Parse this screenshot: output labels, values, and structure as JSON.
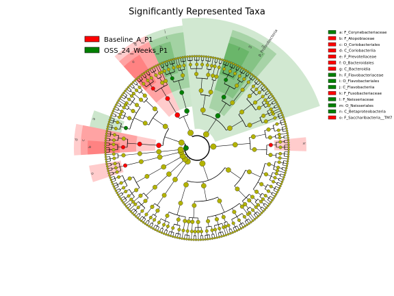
{
  "chart_data": {
    "type": "cladogram",
    "title": "Significantly Represented Taxa",
    "groups": [
      {
        "name": "Baseline_A_P1",
        "color": "#ff0000"
      },
      {
        "name": "OSS_24_Weeks_P1",
        "color": "#008000"
      }
    ],
    "neutral_color": "#b3b300",
    "biomarkers": [
      {
        "letter": "a",
        "label": "a: F_Corynebacteriaceae",
        "group": "OSS_24_Weeks_P1"
      },
      {
        "letter": "b",
        "label": "b: F_Atopobiaceae",
        "group": "Baseline_A_P1"
      },
      {
        "letter": "c",
        "label": "c: O_Coriobacteriales",
        "group": "Baseline_A_P1"
      },
      {
        "letter": "d",
        "label": "d: C_Coriobacteriia",
        "group": "Baseline_A_P1"
      },
      {
        "letter": "e",
        "label": "e: F_Prevotellaceae",
        "group": "Baseline_A_P1"
      },
      {
        "letter": "f",
        "label": "f: O_Bacteroidales",
        "group": "Baseline_A_P1"
      },
      {
        "letter": "g",
        "label": "g: C_Bacteroidia",
        "group": "Baseline_A_P1"
      },
      {
        "letter": "h",
        "label": "h: F_Flavobacteriaceae",
        "group": "OSS_24_Weeks_P1"
      },
      {
        "letter": "i",
        "label": "i: O_Flavobacteriales",
        "group": "OSS_24_Weeks_P1"
      },
      {
        "letter": "j",
        "label": "j: C_Flavobacteriia",
        "group": "OSS_24_Weeks_P1"
      },
      {
        "letter": "k",
        "label": "k: F_Fusobacteriaceae",
        "group": "Baseline_A_P1"
      },
      {
        "letter": "l",
        "label": "l: F_Neisseriaceae",
        "group": "OSS_24_Weeks_P1"
      },
      {
        "letter": "m",
        "label": "m: O_Neisseriales",
        "group": "OSS_24_Weeks_P1"
      },
      {
        "letter": "n",
        "label": "n: C_Betaproteobacteria",
        "group": "OSS_24_Weeks_P1"
      },
      {
        "letter": "o",
        "label": "o: F_Saccharibacteria__TM7",
        "group": "Baseline_A_P1"
      }
    ],
    "sector_labels": [
      {
        "text": "g",
        "group": "Baseline_A_P1"
      },
      {
        "text": "f",
        "group": "Baseline_A_P1"
      },
      {
        "text": "e",
        "group": "Baseline_A_P1"
      },
      {
        "text": "d",
        "group": "Baseline_A_P1"
      },
      {
        "text": "c",
        "group": "Baseline_A_P1"
      },
      {
        "text": "b",
        "group": "Baseline_A_P1"
      },
      {
        "text": "j",
        "group": "OSS_24_Weeks_P1"
      },
      {
        "text": "i",
        "group": "OSS_24_Weeks_P1"
      },
      {
        "text": "h",
        "group": "OSS_24_Weeks_P1"
      },
      {
        "text": "a",
        "group": "OSS_24_Weeks_P1"
      },
      {
        "text": "o",
        "group": "Baseline_A_P1"
      },
      {
        "text": "k",
        "group": "Baseline_A_P1"
      },
      {
        "text": "n",
        "group": "OSS_24_Weeks_P1"
      },
      {
        "text": "m",
        "group": "OSS_24_Weeks_P1"
      },
      {
        "text": "l",
        "group": "OSS_24_Weeks_P1"
      },
      {
        "text": "p_Proteobacteria",
        "group": "OSS_24_Weeks_P1"
      }
    ],
    "legend_position": "top-left",
    "key_position": "right"
  }
}
